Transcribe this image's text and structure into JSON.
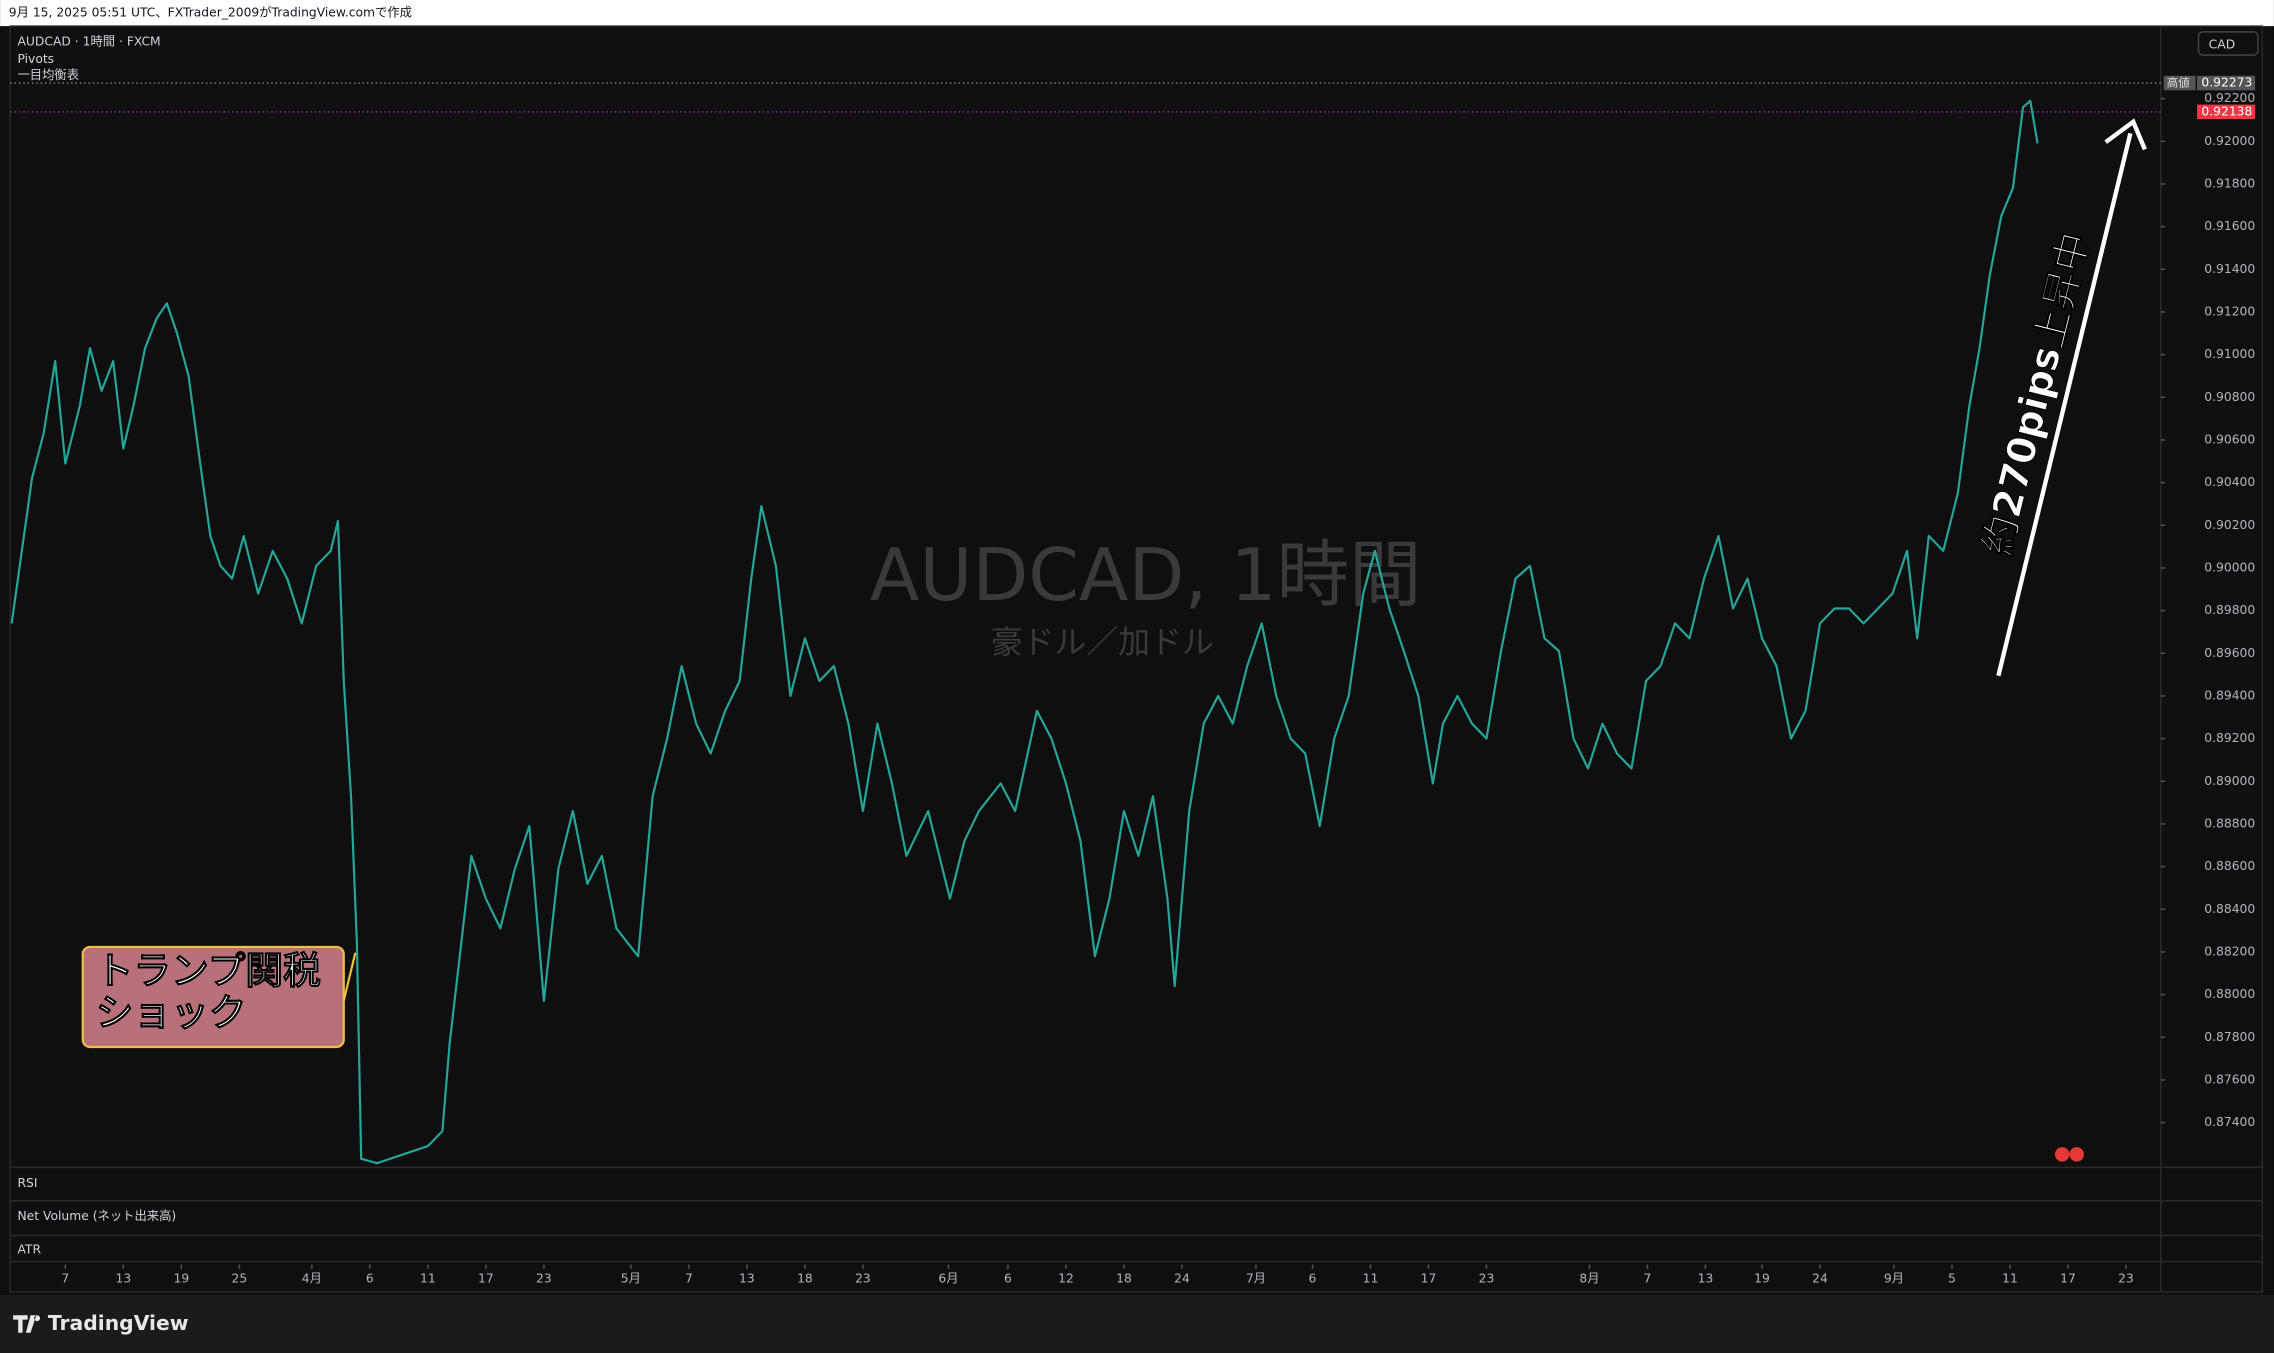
{
  "header": "9月 15, 2025 05:51 UTC、FXTrader_2009がTradingView.comで作成",
  "chart_data": {
    "type": "line",
    "symbol": "AUDCAD · 1時間 · FXCM",
    "indicators": [
      "Pivots",
      "一目均衡表"
    ],
    "watermark": "AUDCAD, 1時間",
    "watermark_sub": "豪ドル／加ドル",
    "currency": "CAD",
    "high_label": "高値",
    "high": 0.92273,
    "last": 0.92138,
    "annotations": {
      "tariff": [
        "トランプ関税",
        "ショック"
      ],
      "rise": "約270pips上昇中"
    },
    "panes": [
      "RSI",
      "Net Volume (ネット出来高)",
      "ATR"
    ],
    "logo": "TradingView",
    "color": "#26a69a",
    "grid": false,
    "xlim": [
      0.7,
      149
    ],
    "xticks": [
      {
        "value": 4.5,
        "label": "7"
      },
      {
        "value": 8.5,
        "label": "13"
      },
      {
        "value": 12.5,
        "label": "19"
      },
      {
        "value": 16.5,
        "label": "25"
      },
      {
        "value": 21.5,
        "label": "4月"
      },
      {
        "value": 25.5,
        "label": "6"
      },
      {
        "value": 29.5,
        "label": "11"
      },
      {
        "value": 33.5,
        "label": "17"
      },
      {
        "value": 37.5,
        "label": "23"
      },
      {
        "value": 43.5,
        "label": "5月"
      },
      {
        "value": 47.5,
        "label": "7"
      },
      {
        "value": 51.5,
        "label": "13"
      },
      {
        "value": 55.5,
        "label": "18"
      },
      {
        "value": 59.5,
        "label": "23"
      },
      {
        "value": 65.4,
        "label": "6月"
      },
      {
        "value": 69.5,
        "label": "6"
      },
      {
        "value": 73.5,
        "label": "12"
      },
      {
        "value": 77.5,
        "label": "18"
      },
      {
        "value": 81.5,
        "label": "24"
      },
      {
        "value": 86.6,
        "label": "7月"
      },
      {
        "value": 90.5,
        "label": "6"
      },
      {
        "value": 94.5,
        "label": "11"
      },
      {
        "value": 98.5,
        "label": "17"
      },
      {
        "value": 102.5,
        "label": "23"
      },
      {
        "value": 109.6,
        "label": "8月"
      },
      {
        "value": 113.6,
        "label": "7"
      },
      {
        "value": 117.6,
        "label": "13"
      },
      {
        "value": 121.5,
        "label": "19"
      },
      {
        "value": 125.5,
        "label": "24"
      },
      {
        "value": 130.6,
        "label": "9月"
      },
      {
        "value": 134.6,
        "label": "5"
      },
      {
        "value": 138.6,
        "label": "11"
      },
      {
        "value": 142.6,
        "label": "17"
      },
      {
        "value": 146.6,
        "label": "23"
      }
    ],
    "ylim": [
      0.8719,
      0.9254
    ],
    "yticks": [
      {
        "value": 0.874,
        "label": "0.87400"
      },
      {
        "value": 0.876,
        "label": "0.87600"
      },
      {
        "value": 0.878,
        "label": "0.87800"
      },
      {
        "value": 0.88,
        "label": "0.88000"
      },
      {
        "value": 0.882,
        "label": "0.88200"
      },
      {
        "value": 0.884,
        "label": "0.88400"
      },
      {
        "value": 0.886,
        "label": "0.88600"
      },
      {
        "value": 0.888,
        "label": "0.88800"
      },
      {
        "value": 0.89,
        "label": "0.89000"
      },
      {
        "value": 0.892,
        "label": "0.89200"
      },
      {
        "value": 0.894,
        "label": "0.89400"
      },
      {
        "value": 0.896,
        "label": "0.89600"
      },
      {
        "value": 0.898,
        "label": "0.89800"
      },
      {
        "value": 0.9,
        "label": "0.90000"
      },
      {
        "value": 0.902,
        "label": "0.90200"
      },
      {
        "value": 0.904,
        "label": "0.90400"
      },
      {
        "value": 0.906,
        "label": "0.90600"
      },
      {
        "value": 0.908,
        "label": "0.90800"
      },
      {
        "value": 0.91,
        "label": "0.91000"
      },
      {
        "value": 0.912,
        "label": "0.91200"
      },
      {
        "value": 0.914,
        "label": "0.91400"
      },
      {
        "value": 0.916,
        "label": "0.91600"
      },
      {
        "value": 0.918,
        "label": "0.91800"
      },
      {
        "value": 0.92,
        "label": "0.92000"
      },
      {
        "value": 0.922,
        "label": "0.92200"
      }
    ],
    "x": [
      0.8,
      1.5,
      2.2,
      3.0,
      3.8,
      4.5,
      5.5,
      6.2,
      7.0,
      7.8,
      8.5,
      9.2,
      10.0,
      10.8,
      11.5,
      12.2,
      13.0,
      13.8,
      14.5,
      15.2,
      16.0,
      16.8,
      17.8,
      18.8,
      19.8,
      20.8,
      21.8,
      22.8,
      23.3,
      23.7,
      24.2,
      24.6,
      24.9,
      26.0,
      29.5,
      30.5,
      31.0,
      31.8,
      32.5,
      33.5,
      34.5,
      35.5,
      36.5,
      37.5,
      38.5,
      39.5,
      40.5,
      41.5,
      42.5,
      44.0,
      45.0,
      46.0,
      47.0,
      48.0,
      49.0,
      50.0,
      51.0,
      51.8,
      52.5,
      53.5,
      54.5,
      55.5,
      56.5,
      57.5,
      58.5,
      59.5,
      60.5,
      61.5,
      62.5,
      64.0,
      65.5,
      66.5,
      67.5,
      69.0,
      70.0,
      71.5,
      72.5,
      73.5,
      74.5,
      75.5,
      76.5,
      77.5,
      78.5,
      79.5,
      80.5,
      81.0,
      82.0,
      83.0,
      84.0,
      85.0,
      86.0,
      87.0,
      88.0,
      89.0,
      90.0,
      91.0,
      92.0,
      93.0,
      94.0,
      94.8,
      95.8,
      96.8,
      97.8,
      98.8,
      99.5,
      100.5,
      101.5,
      102.5,
      103.5,
      104.5,
      105.5,
      106.5,
      107.5,
      108.5,
      109.5,
      110.5,
      111.5,
      112.5,
      113.5,
      114.5,
      115.5,
      116.5,
      117.5,
      118.5,
      119.5,
      120.5,
      121.5,
      122.5,
      123.5,
      124.5,
      125.5,
      126.5,
      127.5,
      128.5,
      129.5,
      130.5,
      131.5,
      132.2,
      133.0,
      134.0,
      135.0,
      135.8,
      136.5,
      137.2,
      138.0,
      138.8,
      139.5,
      140.0,
      140.5
    ],
    "values": [
      0.8974,
      0.9008,
      0.9042,
      0.9063,
      0.9097,
      0.9049,
      0.9076,
      0.9103,
      0.9083,
      0.9097,
      0.9056,
      0.9076,
      0.9103,
      0.9117,
      0.9124,
      0.911,
      0.909,
      0.9049,
      0.9015,
      0.9001,
      0.8995,
      0.9015,
      0.8988,
      0.9008,
      0.8995,
      0.8974,
      0.9001,
      0.9008,
      0.9022,
      0.8947,
      0.8893,
      0.8825,
      0.8723,
      0.8721,
      0.8729,
      0.8736,
      0.8777,
      0.8824,
      0.8865,
      0.8845,
      0.8831,
      0.8859,
      0.8879,
      0.8797,
      0.8859,
      0.8886,
      0.8852,
      0.8865,
      0.8831,
      0.8818,
      0.8893,
      0.892,
      0.8954,
      0.8927,
      0.8913,
      0.8933,
      0.8947,
      0.8995,
      0.9029,
      0.9001,
      0.894,
      0.8967,
      0.8947,
      0.8954,
      0.8927,
      0.8886,
      0.8927,
      0.8899,
      0.8865,
      0.8886,
      0.8845,
      0.8872,
      0.8886,
      0.8899,
      0.8886,
      0.8933,
      0.892,
      0.8899,
      0.8872,
      0.8818,
      0.8845,
      0.8886,
      0.8865,
      0.8893,
      0.8845,
      0.8804,
      0.8886,
      0.8927,
      0.894,
      0.8927,
      0.8954,
      0.8974,
      0.894,
      0.892,
      0.8913,
      0.8879,
      0.892,
      0.894,
      0.8988,
      0.9008,
      0.8981,
      0.8961,
      0.894,
      0.8899,
      0.8927,
      0.894,
      0.8927,
      0.892,
      0.8961,
      0.8995,
      0.9001,
      0.8967,
      0.8961,
      0.892,
      0.8906,
      0.8927,
      0.8913,
      0.8906,
      0.8947,
      0.8954,
      0.8974,
      0.8967,
      0.8995,
      0.9015,
      0.8981,
      0.8995,
      0.8967,
      0.8954,
      0.892,
      0.8933,
      0.8974,
      0.8981,
      0.8981,
      0.8974,
      0.8981,
      0.8988,
      0.9008,
      0.8967,
      0.9015,
      0.9008,
      0.9035,
      0.9076,
      0.9103,
      0.9137,
      0.9165,
      0.9178,
      0.9216,
      0.9219,
      0.9199
    ]
  }
}
